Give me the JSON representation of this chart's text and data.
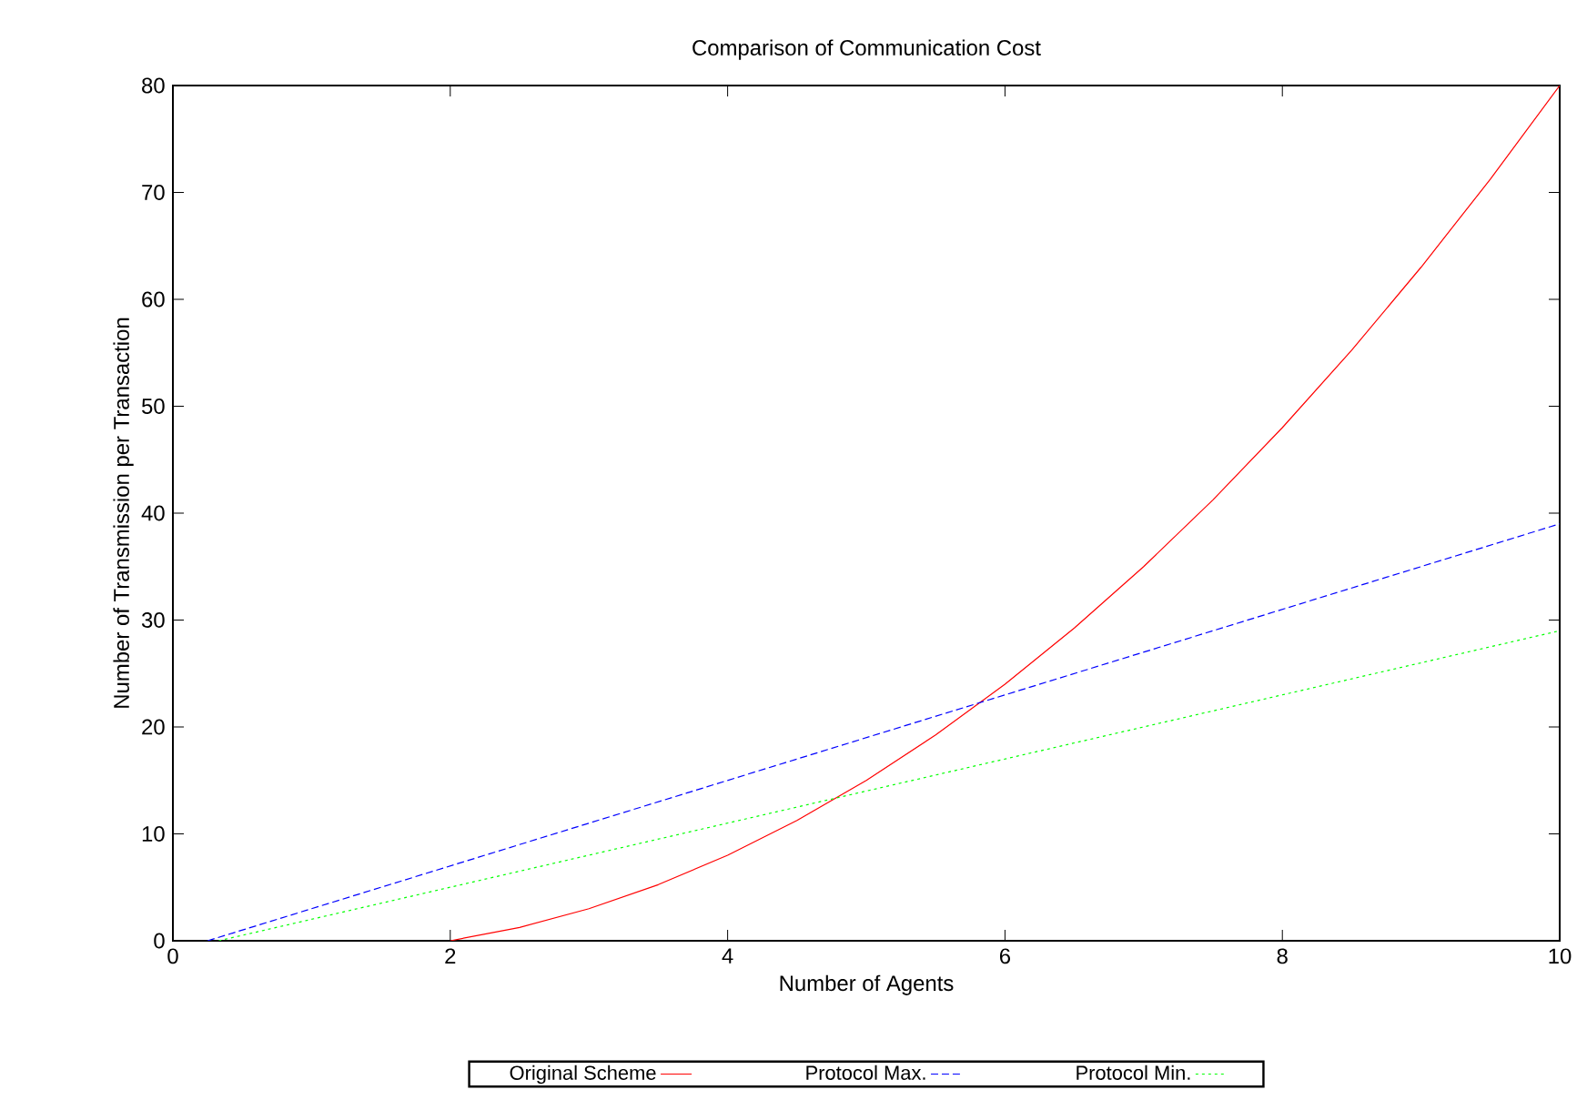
{
  "chart_data": {
    "type": "line",
    "title": "Comparison of Communication Cost",
    "xlabel": "Number of Agents",
    "ylabel": "Number of Transmission per Transaction",
    "xlim": [
      0,
      10
    ],
    "ylim": [
      0,
      80
    ],
    "xticks": [
      0,
      2,
      4,
      6,
      8,
      10
    ],
    "yticks": [
      0,
      10,
      20,
      30,
      40,
      50,
      60,
      70,
      80
    ],
    "grid": false,
    "legend": "bottom",
    "marker": "none",
    "series": [
      {
        "name": "Original Scheme",
        "color": "#ff0000",
        "line_style": "solid",
        "x": [
          2,
          2.5,
          3,
          3.5,
          4,
          4.5,
          5,
          5.5,
          6,
          6.5,
          7,
          7.5,
          8,
          8.5,
          9,
          9.5,
          10
        ],
        "values": [
          0,
          1.25,
          3,
          5.25,
          8,
          11.25,
          15,
          19.25,
          24,
          29.25,
          35,
          41.25,
          48,
          55.25,
          63,
          71.25,
          80
        ]
      },
      {
        "name": "Protocol Max.",
        "color": "#0000ff",
        "line_style": "dashed",
        "x": [
          0.25,
          10
        ],
        "values": [
          0,
          39
        ]
      },
      {
        "name": "Protocol Min.",
        "color": "#00ff00",
        "line_style": "dotted",
        "x": [
          0.33,
          10
        ],
        "values": [
          0,
          29
        ]
      }
    ]
  }
}
